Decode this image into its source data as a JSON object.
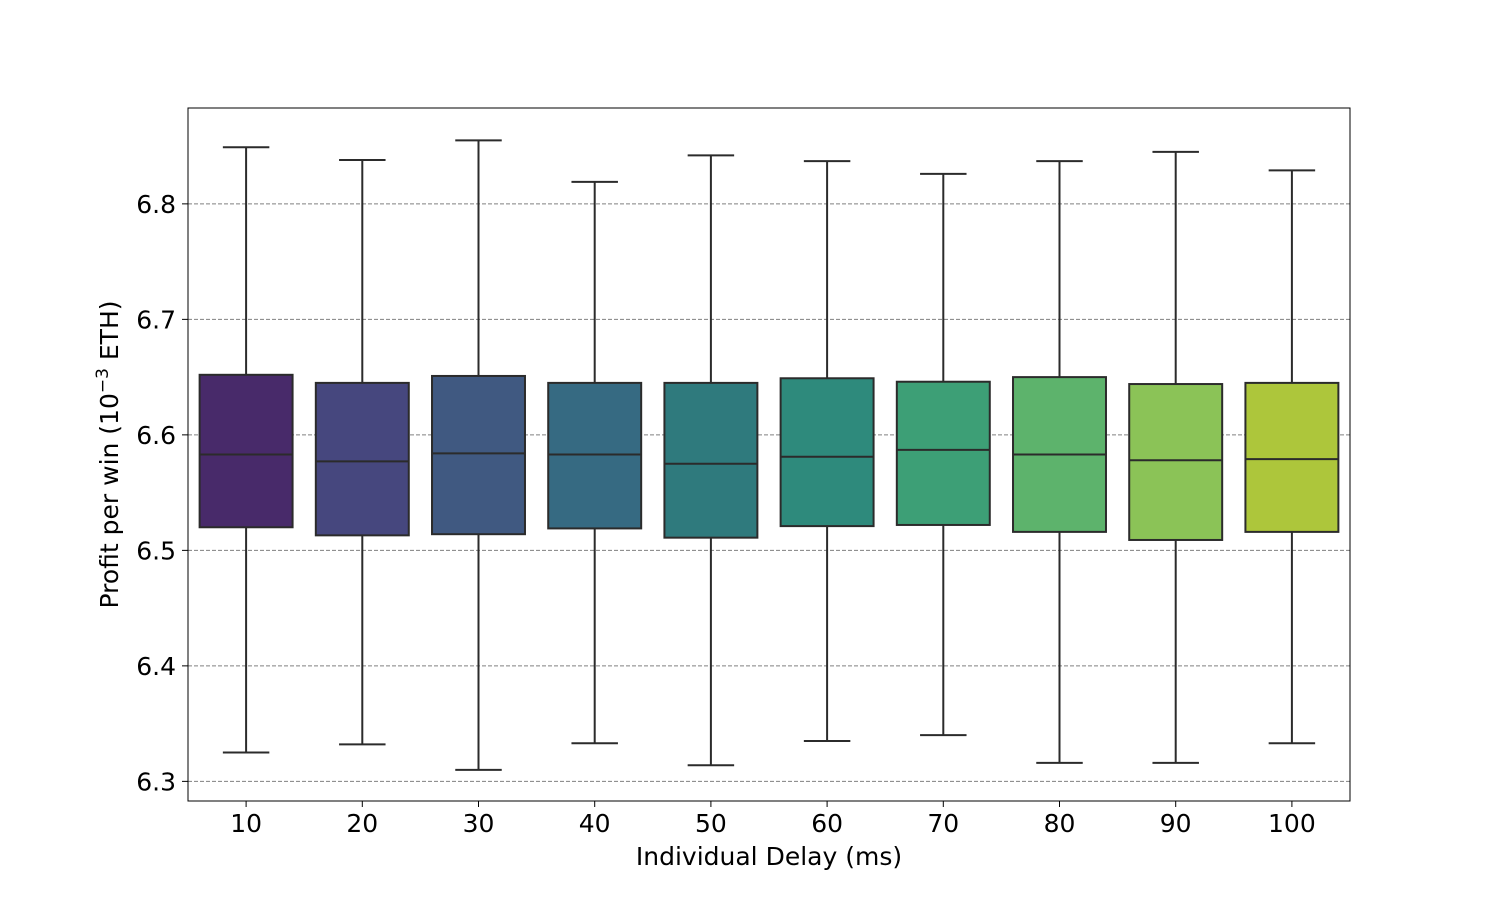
{
  "chart_data": {
    "type": "box",
    "xlabel": "Individual Delay (ms)",
    "ylabel_prefix": "Profit per win (10",
    "ylabel_exponent": "−3",
    "ylabel_suffix": " ETH)",
    "ylim": [
      6.283,
      6.883
    ],
    "yticks": [
      6.3,
      6.4,
      6.5,
      6.6,
      6.7,
      6.8
    ],
    "ytick_labels": [
      "6.3",
      "6.4",
      "6.5",
      "6.6",
      "6.7",
      "6.8"
    ],
    "grid": "y-dashed",
    "categories": [
      "10",
      "20",
      "30",
      "40",
      "50",
      "60",
      "70",
      "80",
      "90",
      "100"
    ],
    "boxes": [
      {
        "category": "10",
        "whisker_low": 6.325,
        "q1": 6.52,
        "median": 6.583,
        "q3": 6.652,
        "whisker_high": 6.849,
        "color": "#482a6a"
      },
      {
        "category": "20",
        "whisker_low": 6.332,
        "q1": 6.513,
        "median": 6.577,
        "q3": 6.645,
        "whisker_high": 6.838,
        "color": "#46477e"
      },
      {
        "category": "30",
        "whisker_low": 6.31,
        "q1": 6.514,
        "median": 6.584,
        "q3": 6.651,
        "whisker_high": 6.855,
        "color": "#405981"
      },
      {
        "category": "40",
        "whisker_low": 6.333,
        "q1": 6.519,
        "median": 6.583,
        "q3": 6.645,
        "whisker_high": 6.819,
        "color": "#366a82"
      },
      {
        "category": "50",
        "whisker_low": 6.314,
        "q1": 6.511,
        "median": 6.575,
        "q3": 6.645,
        "whisker_high": 6.842,
        "color": "#2f7a7d"
      },
      {
        "category": "60",
        "whisker_low": 6.335,
        "q1": 6.521,
        "median": 6.581,
        "q3": 6.649,
        "whisker_high": 6.837,
        "color": "#2e8a7c"
      },
      {
        "category": "70",
        "whisker_low": 6.34,
        "q1": 6.522,
        "median": 6.587,
        "q3": 6.646,
        "whisker_high": 6.826,
        "color": "#3d9f76"
      },
      {
        "category": "80",
        "whisker_low": 6.316,
        "q1": 6.516,
        "median": 6.583,
        "q3": 6.65,
        "whisker_high": 6.837,
        "color": "#5db36c"
      },
      {
        "category": "90",
        "whisker_low": 6.316,
        "q1": 6.509,
        "median": 6.578,
        "q3": 6.644,
        "whisker_high": 6.845,
        "color": "#8bc357"
      },
      {
        "category": "100",
        "whisker_low": 6.333,
        "q1": 6.516,
        "median": 6.579,
        "q3": 6.645,
        "whisker_high": 6.829,
        "color": "#adc63b"
      }
    ]
  }
}
